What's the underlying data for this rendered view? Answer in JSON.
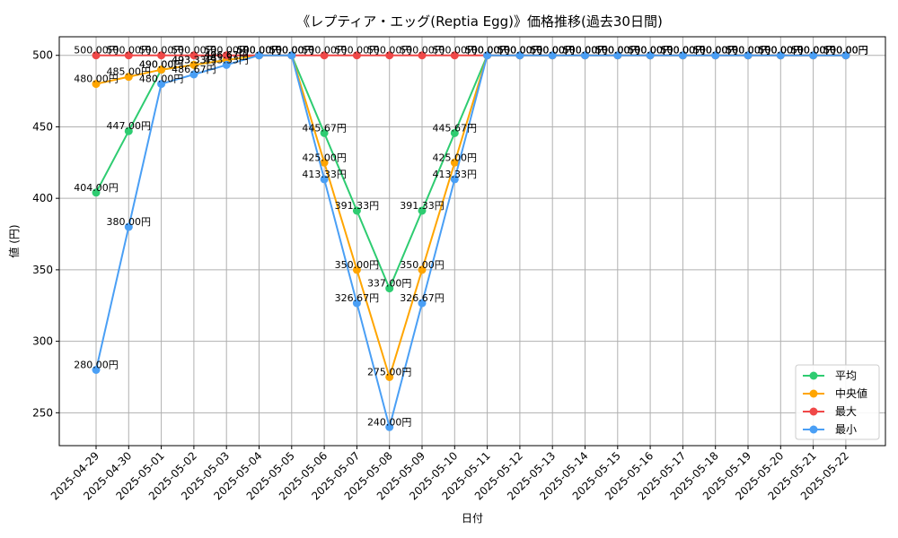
{
  "chart_data": {
    "type": "line",
    "title": "《レプティア・エッグ(Reptia Egg)》価格推移(過去30日間)",
    "xlabel": "日付",
    "ylabel": "値 (円)",
    "ylim": [
      227,
      513
    ],
    "yticks": [
      250,
      300,
      350,
      400,
      450,
      500
    ],
    "grid": true,
    "legend_position": "bottom-right",
    "value_suffix": "円",
    "categories": [
      "2025-04-29",
      "2025-04-30",
      "2025-05-01",
      "2025-05-02",
      "2025-05-03",
      "2025-05-04",
      "2025-05-05",
      "2025-05-06",
      "2025-05-07",
      "2025-05-08",
      "2025-05-09",
      "2025-05-10",
      "2025-05-11",
      "2025-05-12",
      "2025-05-13",
      "2025-05-14",
      "2025-05-15",
      "2025-05-16",
      "2025-05-17",
      "2025-05-18",
      "2025-05-19",
      "2025-05-20",
      "2025-05-21",
      "2025-05-22"
    ],
    "series": [
      {
        "name": "平均",
        "color": "#2ecc71",
        "values": [
          404.0,
          447.0,
          490.0,
          493.33,
          496.67,
          500,
          500,
          445.67,
          391.33,
          337.0,
          391.33,
          445.67,
          500,
          500,
          500,
          500,
          500,
          500,
          500,
          500,
          500,
          500,
          500,
          500
        ]
      },
      {
        "name": "中央値",
        "color": "#ffa500",
        "values": [
          480.0,
          485.0,
          490.0,
          493.33,
          496.67,
          500,
          500,
          425.0,
          350.0,
          275.0,
          350.0,
          425.0,
          500,
          500,
          500,
          500,
          500,
          500,
          500,
          500,
          500,
          500,
          500,
          500
        ]
      },
      {
        "name": "最大",
        "color": "#f04848",
        "values": [
          500,
          500,
          500,
          500,
          500,
          500,
          500,
          500,
          500,
          500,
          500,
          500,
          500,
          500,
          500,
          500,
          500,
          500,
          500,
          500,
          500,
          500,
          500,
          500
        ]
      },
      {
        "name": "最小",
        "color": "#4a9ff5",
        "values": [
          280.0,
          380.0,
          480.0,
          486.67,
          493.33,
          500,
          500,
          413.33,
          326.67,
          240.0,
          326.67,
          413.33,
          500,
          500,
          500,
          500,
          500,
          500,
          500,
          500,
          500,
          500,
          500,
          500
        ]
      }
    ]
  }
}
